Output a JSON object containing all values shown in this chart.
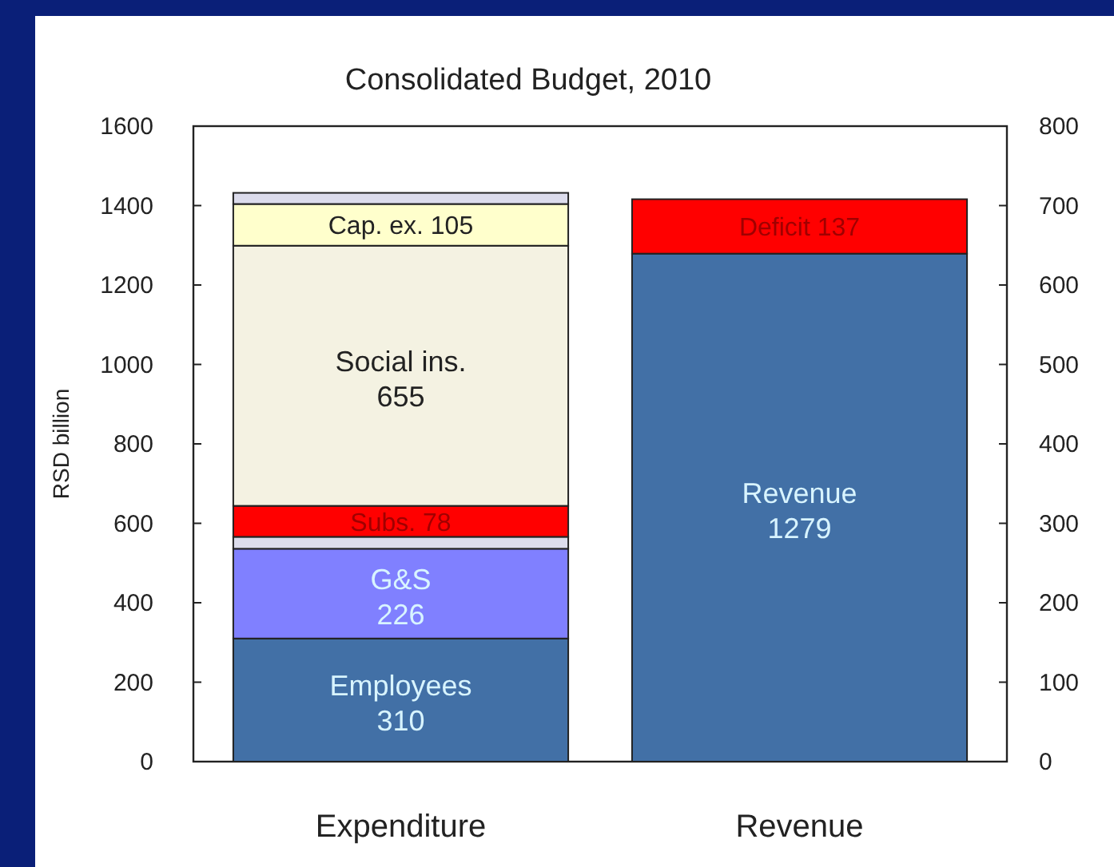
{
  "chart_data": {
    "type": "bar",
    "title": "Consolidated Budget, 2010",
    "ylabel": "RSD billion",
    "categories": [
      "Expenditure",
      "Revenue"
    ],
    "stacked": true,
    "grid": false,
    "ylim": [
      0,
      1600
    ],
    "yticks": [
      0,
      200,
      400,
      600,
      800,
      1000,
      1200,
      1400,
      1600
    ],
    "y2lim": [
      0,
      800
    ],
    "y2ticks": [
      0,
      100,
      200,
      300,
      400,
      500,
      600,
      700,
      800
    ],
    "series": [
      {
        "name": "Employees",
        "color": "#4270a6",
        "values": [
          310,
          null
        ],
        "value_labels": [
          "310",
          null
        ]
      },
      {
        "name": "G&S",
        "color": "#8080ff",
        "values": [
          226,
          null
        ],
        "value_labels": [
          "226",
          null
        ]
      },
      {
        "color": "#dcdcec",
        "values": [
          30,
          null
        ],
        "value_labels": [
          null,
          null
        ]
      },
      {
        "name": "Subs.",
        "color": "#ff0000",
        "values": [
          78,
          null
        ],
        "value_labels": [
          "78",
          null
        ]
      },
      {
        "name": "Social ins.",
        "color": "#f4f2e2",
        "values": [
          655,
          null
        ],
        "value_labels": [
          "655",
          null
        ]
      },
      {
        "name": "Cap. ex.",
        "color": "#ffffcc",
        "values": [
          105,
          null
        ],
        "value_labels": [
          "105",
          null
        ]
      },
      {
        "color": "#dcdcec",
        "values": [
          28,
          null
        ],
        "value_labels": [
          null,
          null
        ]
      },
      {
        "name": "Revenue",
        "color": "#4270a6",
        "values": [
          null,
          1279
        ],
        "value_labels": [
          null,
          "1279"
        ]
      },
      {
        "name": "Deficit",
        "color": "#ff0000",
        "values": [
          null,
          137
        ],
        "value_labels": [
          null,
          "137"
        ]
      }
    ]
  }
}
